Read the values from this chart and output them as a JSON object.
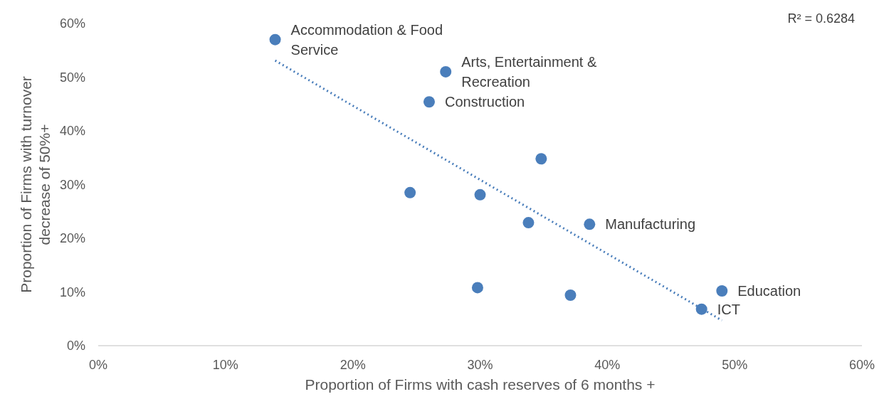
{
  "chart_data": {
    "type": "scatter",
    "xlabel": "Proportion of Firms with cash reserves of 6 months +",
    "ylabel": "Proportion of Firms with turnover decrease of 50%+",
    "xlim": [
      0,
      60
    ],
    "ylim": [
      0,
      60
    ],
    "xticks": [
      {
        "value": 0,
        "label": "0%"
      },
      {
        "value": 10,
        "label": "10%"
      },
      {
        "value": 20,
        "label": "20%"
      },
      {
        "value": 30,
        "label": "30%"
      },
      {
        "value": 40,
        "label": "40%"
      },
      {
        "value": 50,
        "label": "50%"
      },
      {
        "value": 60,
        "label": "60%"
      }
    ],
    "yticks": [
      {
        "value": 0,
        "label": "0%"
      },
      {
        "value": 10,
        "label": "10%"
      },
      {
        "value": 20,
        "label": "20%"
      },
      {
        "value": 30,
        "label": "30%"
      },
      {
        "value": 40,
        "label": "40%"
      },
      {
        "value": 50,
        "label": "50%"
      },
      {
        "value": 60,
        "label": "60%"
      }
    ],
    "marker": "circle",
    "series": [
      {
        "color": "#4a7ebb",
        "x": [
          13.9,
          27.3,
          26.0,
          34.8,
          24.5,
          30.0,
          33.8,
          38.6,
          29.8,
          37.1,
          49.0,
          47.4
        ],
        "values": [
          57.0,
          51.0,
          45.4,
          34.8,
          28.5,
          28.1,
          22.9,
          22.6,
          10.8,
          9.4,
          10.2,
          6.8
        ]
      },
      {
        "type": "line",
        "color": "#4a7ebb",
        "line_style": "dotted",
        "marker": "none",
        "x": [
          13.9,
          49.0
        ],
        "values": [
          53.1,
          4.7
        ]
      }
    ],
    "annotations": [
      {
        "text": "Accommodation & Food Service",
        "x": 13.9,
        "y": 57.0
      },
      {
        "text": "Arts, Entertainment & Recreation",
        "x": 27.3,
        "y": 51.0
      },
      {
        "text": "Construction",
        "x": 26.0,
        "y": 45.4
      },
      {
        "text": "Manufacturing",
        "x": 38.6,
        "y": 22.6
      },
      {
        "text": "Education",
        "x": 49.0,
        "y": 10.2
      },
      {
        "text": "ICT",
        "x": 47.4,
        "y": 6.8
      },
      "R² = 0.6284"
    ]
  }
}
